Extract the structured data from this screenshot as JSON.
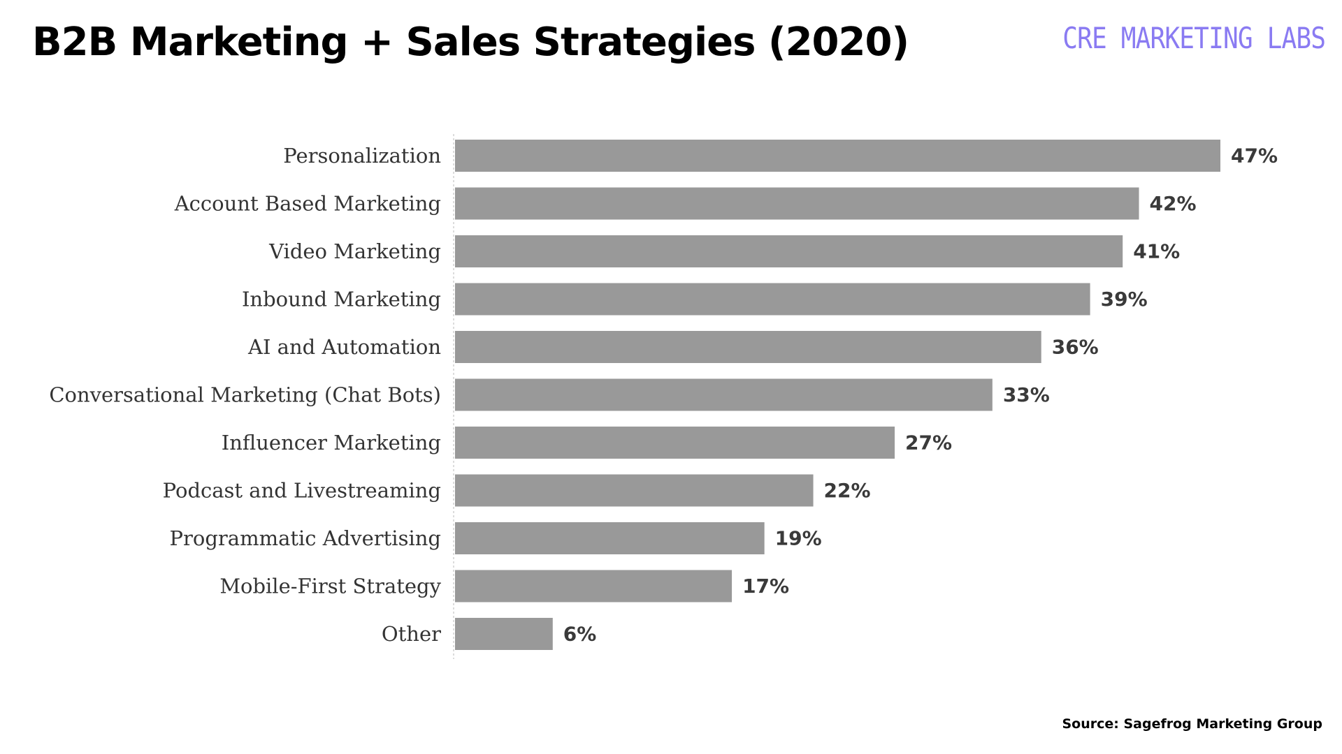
{
  "title": "B2B Marketing + Sales Strategies (2020)",
  "brand": "CRE MARKETING LABS",
  "source": "Source: Sagefrog Marketing Group",
  "colors": {
    "bar": "#999999",
    "brand": "#8a7bf2",
    "title": "#000000"
  },
  "chart_data": {
    "type": "bar",
    "orientation": "horizontal",
    "title": "B2B Marketing + Sales Strategies (2020)",
    "xlabel": "",
    "ylabel": "",
    "xlim": [
      0,
      50
    ],
    "grid": false,
    "legend": "none",
    "categories": [
      "Personalization",
      "Account Based Marketing",
      "Video Marketing",
      "Inbound Marketing",
      "AI and Automation",
      "Conversational Marketing (Chat Bots)",
      "Influencer Marketing",
      "Podcast and Livestreaming",
      "Programmatic Advertising",
      "Mobile-First Strategy",
      "Other"
    ],
    "values": [
      47,
      42,
      41,
      39,
      36,
      33,
      27,
      22,
      19,
      17,
      6
    ],
    "value_labels": [
      "47%",
      "42%",
      "41%",
      "39%",
      "36%",
      "33%",
      "27%",
      "22%",
      "19%",
      "17%",
      "6%"
    ]
  }
}
